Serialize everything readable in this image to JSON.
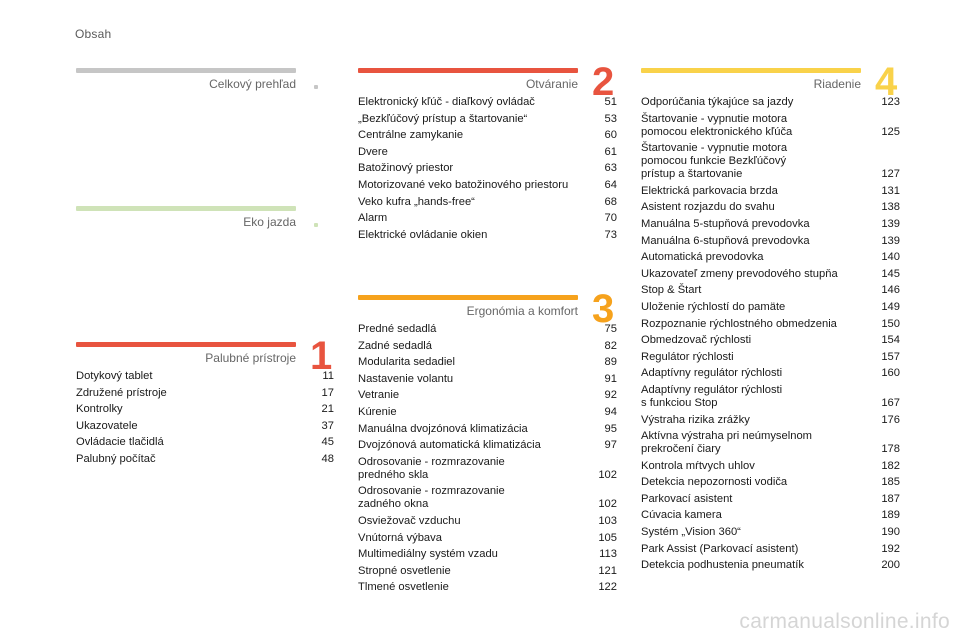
{
  "header": {
    "title": "Obsah"
  },
  "colors": {
    "grey": "#c6c6c6",
    "green": "#cfe3b8",
    "red": "#e8543f",
    "orange": "#f6a21c",
    "yellow": "#f9d24a"
  },
  "sections": {
    "overview": {
      "title": "Celkový prehľad"
    },
    "eco": {
      "title": "Eko jazda"
    },
    "s1": {
      "number": "1",
      "title": "Palubné prístroje",
      "entries": [
        {
          "title": "Dotykový tablet",
          "page": "11"
        },
        {
          "title": "Združené prístroje",
          "page": "17"
        },
        {
          "title": "Kontrolky",
          "page": "21"
        },
        {
          "title": "Ukazovatele",
          "page": "37"
        },
        {
          "title": "Ovládacie tlačidlá",
          "page": "45"
        },
        {
          "title": "Palubný počítač",
          "page": "48"
        }
      ]
    },
    "s2": {
      "number": "2",
      "title": "Otváranie",
      "entries": [
        {
          "title": "Elektronický kľúč - diaľkový ovládač",
          "page": "51"
        },
        {
          "title": "„Bezkľúčový prístup a štartovanie“",
          "page": "53"
        },
        {
          "title": "Centrálne zamykanie",
          "page": "60"
        },
        {
          "title": "Dvere",
          "page": "61"
        },
        {
          "title": "Batožinový priestor",
          "page": "63"
        },
        {
          "title": "Motorizované veko batožinového priestoru",
          "page": "64"
        },
        {
          "title": "Veko kufra „hands-free“",
          "page": "68"
        },
        {
          "title": "Alarm",
          "page": "70"
        },
        {
          "title": "Elektrické ovládanie okien",
          "page": "73"
        }
      ]
    },
    "s3": {
      "number": "3",
      "title": "Ergonómia a komfort",
      "entries": [
        {
          "title": "Predné sedadlá",
          "page": "75"
        },
        {
          "title": "Zadné sedadlá",
          "page": "82"
        },
        {
          "title": "Modularita sedadiel",
          "page": "89"
        },
        {
          "title": "Nastavenie volantu",
          "page": "91"
        },
        {
          "title": "Vetranie",
          "page": "92"
        },
        {
          "title": "Kúrenie",
          "page": "94"
        },
        {
          "title": "Manuálna dvojzónová klimatizácia",
          "page": "95"
        },
        {
          "title": "Dvojzónová automatická klimatizácia",
          "page": "97"
        },
        {
          "title": "Odrosovanie - rozmrazovanie\npredného skla",
          "page": "102"
        },
        {
          "title": "Odrosovanie - rozmrazovanie\nzadného okna",
          "page": "102"
        },
        {
          "title": "Osviežovač vzduchu",
          "page": "103"
        },
        {
          "title": "Vnútorná výbava",
          "page": "105"
        },
        {
          "title": "Multimediálny systém vzadu",
          "page": "113"
        },
        {
          "title": "Stropné osvetlenie",
          "page": "121"
        },
        {
          "title": "Tlmené osvetlenie",
          "page": "122"
        }
      ]
    },
    "s4": {
      "number": "4",
      "title": "Riadenie",
      "entries": [
        {
          "title": "Odporúčania týkajúce sa jazdy",
          "page": "123"
        },
        {
          "title": "Štartovanie - vypnutie motora\npomocou elektronického kľúča",
          "page": "125"
        },
        {
          "title": "Štartovanie - vypnutie motora\npomocou funkcie Bezkľúčový\nprístup a štartovanie",
          "page": "127"
        },
        {
          "title": "Elektrická parkovacia brzda",
          "page": "131"
        },
        {
          "title": "Asistent rozjazdu do svahu",
          "page": "138"
        },
        {
          "title": "Manuálna 5-stupňová prevodovka",
          "page": "139"
        },
        {
          "title": "Manuálna 6-stupňová prevodovka",
          "page": "139"
        },
        {
          "title": "Automatická prevodovka",
          "page": "140"
        },
        {
          "title": "Ukazovateľ zmeny prevodového stupňa",
          "page": "145"
        },
        {
          "title": "Stop & Štart",
          "page": "146"
        },
        {
          "title": "Uloženie rýchlostí do pamäte",
          "page": "149"
        },
        {
          "title": "Rozpoznanie rýchlostného obmedzenia",
          "page": "150"
        },
        {
          "title": "Obmedzovač rýchlosti",
          "page": "154"
        },
        {
          "title": "Regulátor rýchlosti",
          "page": "157"
        },
        {
          "title": "Adaptívny regulátor rýchlosti",
          "page": "160"
        },
        {
          "title": "Adaptívny regulátor rýchlosti\ns funkciou Stop",
          "page": "167"
        },
        {
          "title": "Výstraha rizika zrážky",
          "page": "176"
        },
        {
          "title": "Aktívna výstraha pri neúmyselnom\nprekročení čiary",
          "page": "178"
        },
        {
          "title": "Kontrola mŕtvych uhlov",
          "page": "182"
        },
        {
          "title": "Detekcia nepozornosti vodiča",
          "page": "185"
        },
        {
          "title": "Parkovací asistent",
          "page": "187"
        },
        {
          "title": "Cúvacia kamera",
          "page": "189"
        },
        {
          "title": "Systém „Vision 360“",
          "page": "190"
        },
        {
          "title": "Park Assist (Parkovací asistent)",
          "page": "192"
        },
        {
          "title": "Detekcia podhustenia pneumatík",
          "page": "200"
        }
      ]
    }
  },
  "watermark": "carmanualsonline.info"
}
